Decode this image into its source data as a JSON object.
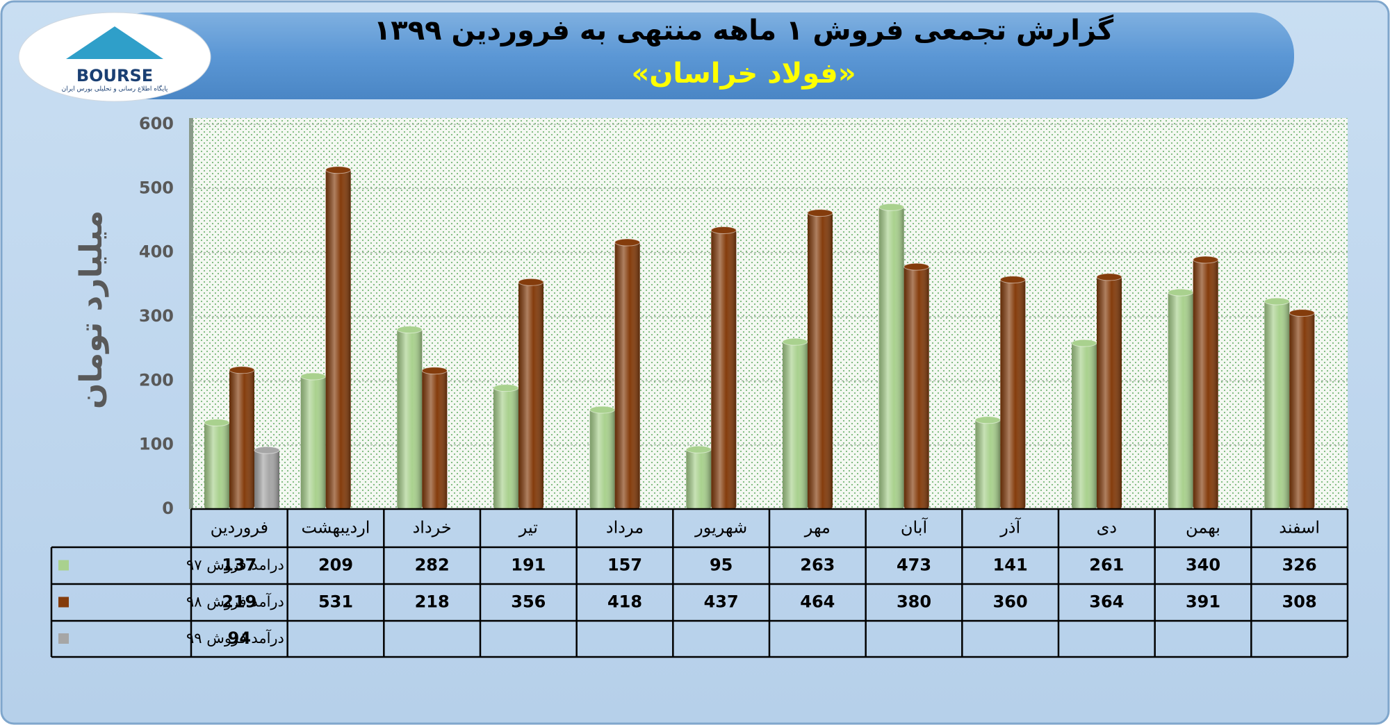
{
  "logo": {
    "text": "BOURSE",
    "tagline": "پایگاه اطلاع رسانی و تحلیلی بورس ایران"
  },
  "chart_data": {
    "type": "bar",
    "title": "گزارش تجمعی فروش ۱ ماهه منتهی به فروردین ۱۳۹۹",
    "subtitle": "«فولاد خراسان»",
    "y_label": "میلیارد تومان",
    "categories": [
      "فروردین",
      "اردیبهشت",
      "خرداد",
      "تیر",
      "مرداد",
      "شهریور",
      "مهر",
      "آبان",
      "آذر",
      "دی",
      "بهمن",
      "اسفند"
    ],
    "series": [
      {
        "name": "درامد فروش ۹۷",
        "color": "#a9d18e",
        "values": [
          137,
          209,
          282,
          191,
          157,
          95,
          263,
          473,
          141,
          261,
          340,
          326
        ]
      },
      {
        "name": "درآمد فروش ۹۸",
        "color": "#843c0c",
        "values": [
          219,
          531,
          218,
          356,
          418,
          437,
          464,
          380,
          360,
          364,
          391,
          308
        ]
      },
      {
        "name": "درآمد فروش ۹۹",
        "color": "#a6a6a6",
        "values": [
          94,
          null,
          null,
          null,
          null,
          null,
          null,
          null,
          null,
          null,
          null,
          null
        ]
      }
    ],
    "ylim": [
      0,
      600
    ],
    "yticks": [
      0,
      100,
      200,
      300,
      400,
      500,
      600
    ],
    "grid": true
  }
}
